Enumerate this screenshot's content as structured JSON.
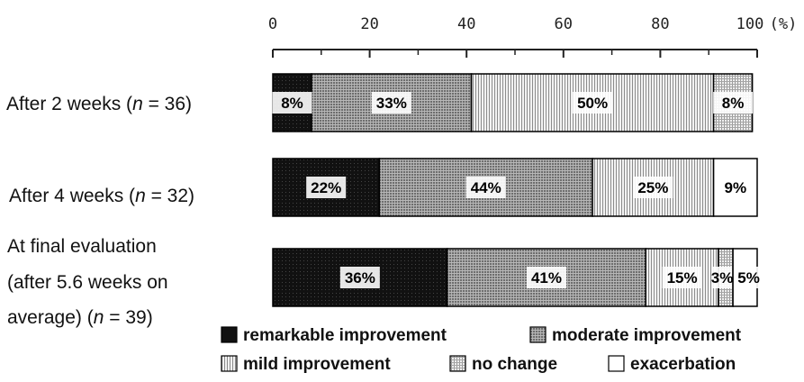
{
  "chart_data": {
    "type": "bar",
    "orientation": "horizontal",
    "stacked": true,
    "title": "",
    "xlabel": "",
    "ylabel": "",
    "x_axis_position": "top",
    "xlim": [
      0,
      100
    ],
    "x_ticks": [
      "0",
      "20",
      "40",
      "60",
      "80",
      "100"
    ],
    "x_unit_label": "(%)",
    "grid": false,
    "legend_position": "bottom-right",
    "categories": [
      {
        "label_parts": [
          {
            "t": "After 2 weeks ("
          },
          {
            "t": "n",
            "i": true
          },
          {
            "t": " = 36)"
          }
        ]
      },
      {
        "label_parts": [
          {
            "t": "After 4 weeks ("
          },
          {
            "t": "n",
            "i": true
          },
          {
            "t": " = 32)"
          }
        ]
      },
      {
        "label_lines": [
          [
            {
              "t": "At final evaluation"
            }
          ],
          [
            {
              "t": "(after 5.6 weeks on"
            }
          ],
          [
            {
              "t": "average) ("
            },
            {
              "t": "n",
              "i": true
            },
            {
              "t": " = 39)"
            }
          ]
        ]
      }
    ],
    "series": [
      {
        "name": "remarkable improvement",
        "color": "#111111",
        "values": [
          8,
          22,
          36
        ],
        "labels": [
          "8%",
          "22%",
          "36%"
        ]
      },
      {
        "name": "moderate improvement",
        "color": "#8a8a8a",
        "values": [
          33,
          44,
          41
        ],
        "labels": [
          "33%",
          "44%",
          "41%"
        ]
      },
      {
        "name": "mild improvement",
        "color": "#c4c4c4",
        "values": [
          50,
          25,
          15
        ],
        "labels": [
          "50%",
          "25%",
          "15%"
        ]
      },
      {
        "name": "no change",
        "color": "#dedede",
        "values": [
          8,
          0,
          3
        ],
        "labels": [
          "8%",
          "",
          "3%"
        ]
      },
      {
        "name": "exacerbation",
        "color": "#ffffff",
        "values": [
          0,
          9,
          5
        ],
        "labels": [
          "",
          "9%",
          "5%"
        ]
      }
    ]
  }
}
